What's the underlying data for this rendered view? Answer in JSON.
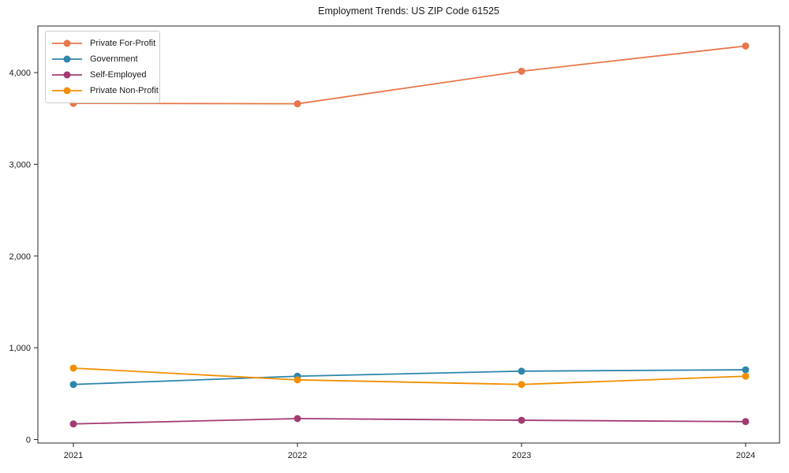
{
  "chart_data": {
    "type": "line",
    "title": "Employment Trends: US ZIP Code 61525",
    "x_labels": [
      "2021",
      "2022",
      "2023",
      "2024"
    ],
    "series": [
      {
        "name": "Private For-Profit",
        "color": "#e8764b",
        "values": [
          3665,
          3660,
          4015,
          4290
        ]
      },
      {
        "name": "Government",
        "color": "#2e86ab",
        "values": [
          600,
          690,
          745,
          760
        ]
      },
      {
        "name": "Self-Employed",
        "color": "#a23b72",
        "values": [
          170,
          228,
          210,
          195
        ]
      },
      {
        "name": "Private Non-Profit",
        "color": "#f18f01",
        "values": [
          778,
          650,
          600,
          690
        ]
      }
    ],
    "yticks": [
      {
        "value": 0,
        "label": "0"
      },
      {
        "value": 1000,
        "label": "1,000"
      },
      {
        "value": 2000,
        "label": "2,000"
      },
      {
        "value": 3000,
        "label": "3,000"
      },
      {
        "value": 4000,
        "label": "4,000"
      }
    ],
    "ylim": [
      0,
      4510
    ],
    "xlabel": "",
    "ylabel": "",
    "grid": false,
    "legend_position": "upper-left",
    "marker": "circle"
  },
  "colors": {
    "axis": "#262626",
    "tick_text": "#1a1a1a",
    "legend_border": "#cccccc",
    "background": "#ffffff"
  }
}
